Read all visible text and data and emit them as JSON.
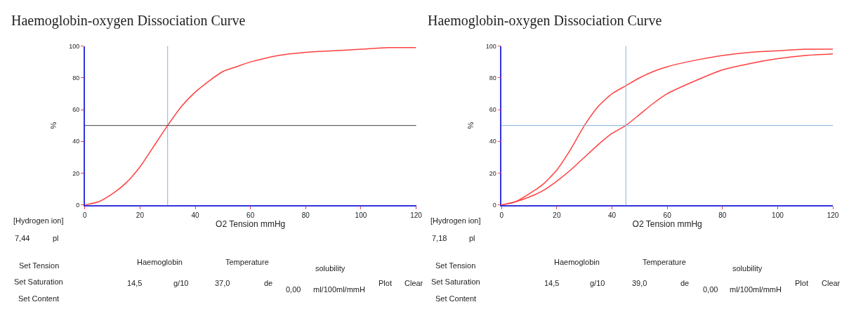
{
  "chart_data": [
    {
      "type": "line",
      "title": "Haemoglobin-oxygen Dissociation Curve",
      "xlabel": "O2 Tension mmHg",
      "ylabel": "%",
      "x": [
        0,
        5,
        10,
        15,
        20,
        25,
        30,
        35,
        40,
        45,
        50,
        55,
        60,
        70,
        80,
        90,
        100,
        110,
        120
      ],
      "series": [
        {
          "color": "#ff4040",
          "values": [
            0,
            2,
            7,
            14,
            24,
            37,
            50,
            62,
            71,
            78,
            84,
            87,
            90,
            94,
            96,
            97,
            98,
            99,
            99
          ]
        }
      ],
      "xlim": [
        0,
        120
      ],
      "xticks": [
        0,
        20,
        40,
        60,
        80,
        100,
        120
      ],
      "ylim": [
        0,
        100
      ],
      "yticks": [
        0,
        20,
        40,
        60,
        80,
        100
      ],
      "ref_lines": [
        {
          "axis": "x",
          "value": 30,
          "color": "#80b0e0"
        },
        {
          "axis": "y",
          "value": 50,
          "color": "#404040"
        }
      ],
      "annotations": [
        "[Hydrogen ion]",
        "7,44",
        "pl",
        "Set Tension",
        "Set Saturation",
        "Set Content",
        "Haemoglobin",
        "14,5",
        "g/10",
        "Temperature",
        "37,0",
        "de",
        "solubility",
        "0,00",
        "ml/100ml/mmH",
        "Plot",
        "Clear"
      ]
    },
    {
      "type": "line",
      "title": "Haemoglobin-oxygen Dissociation Curve",
      "xlabel": "O2 Tension mmHg",
      "ylabel": "%",
      "x": [
        0,
        5,
        10,
        15,
        20,
        25,
        30,
        35,
        40,
        45,
        50,
        55,
        60,
        70,
        80,
        90,
        100,
        110,
        120
      ],
      "series": [
        {
          "color": "#ff4040",
          "values": [
            0,
            2,
            7,
            13,
            22,
            35,
            50,
            62,
            70,
            75,
            80,
            84,
            87,
            91,
            94,
            96,
            97,
            98,
            98
          ]
        },
        {
          "color": "#ff4040",
          "values": [
            0,
            2,
            5,
            9,
            15,
            22,
            30,
            38,
            45,
            50,
            57,
            64,
            70,
            78,
            85,
            89,
            92,
            94,
            95
          ]
        }
      ],
      "xlim": [
        0,
        120
      ],
      "xticks": [
        0,
        20,
        40,
        60,
        80,
        100,
        120
      ],
      "ylim": [
        0,
        100
      ],
      "yticks": [
        0,
        20,
        40,
        60,
        80,
        100
      ],
      "ref_lines": [
        {
          "axis": "x",
          "value": 45,
          "color": "#80b0e0"
        },
        {
          "axis": "y",
          "value": 50,
          "color": "#80b0e0"
        }
      ],
      "annotations": [
        "[Hydrogen ion]",
        "7,18",
        "pl",
        "Set Tension",
        "Set Saturation",
        "Set Content",
        "Haemoglobin",
        "14,5",
        "g/10",
        "Temperature",
        "39,0",
        "de",
        "solubility",
        "0,00",
        "ml/100ml/mmH",
        "Plot",
        "Clear"
      ]
    }
  ]
}
